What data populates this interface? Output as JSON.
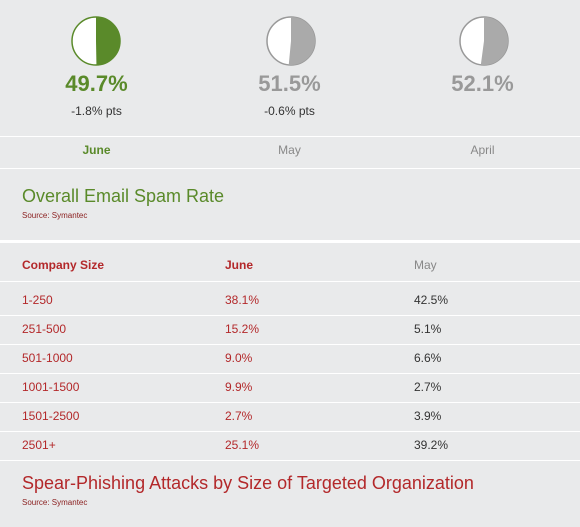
{
  "chart_data": [
    {
      "type": "pie",
      "title": "Overall Email Spam Rate",
      "source": "Source: Symantec",
      "months": [
        {
          "month": "June",
          "value": 49.7,
          "value_label": "49.7%",
          "change": "-1.8% pts",
          "color": "#5a8a2a"
        },
        {
          "month": "May",
          "value": 51.5,
          "value_label": "51.5%",
          "change": "-0.6% pts",
          "color": "#999999"
        },
        {
          "month": "April",
          "value": 52.1,
          "value_label": "52.1%",
          "change": "",
          "color": "#999999"
        }
      ]
    },
    {
      "type": "table",
      "title": "Spear-Phishing Attacks by Size of Targeted Organization",
      "source": "Source: Symantec",
      "columns": [
        "Company Size",
        "June",
        "May"
      ],
      "rows": [
        [
          "1-250",
          "38.1%",
          "42.5%"
        ],
        [
          "251-500",
          "15.2%",
          "5.1%"
        ],
        [
          "501-1000",
          "9.0%",
          "6.6%"
        ],
        [
          "1001-1500",
          "9.9%",
          "2.7%"
        ],
        [
          "1501-2500",
          "2.7%",
          "3.9%"
        ],
        [
          "2501+",
          "25.1%",
          "39.2%"
        ]
      ]
    }
  ]
}
